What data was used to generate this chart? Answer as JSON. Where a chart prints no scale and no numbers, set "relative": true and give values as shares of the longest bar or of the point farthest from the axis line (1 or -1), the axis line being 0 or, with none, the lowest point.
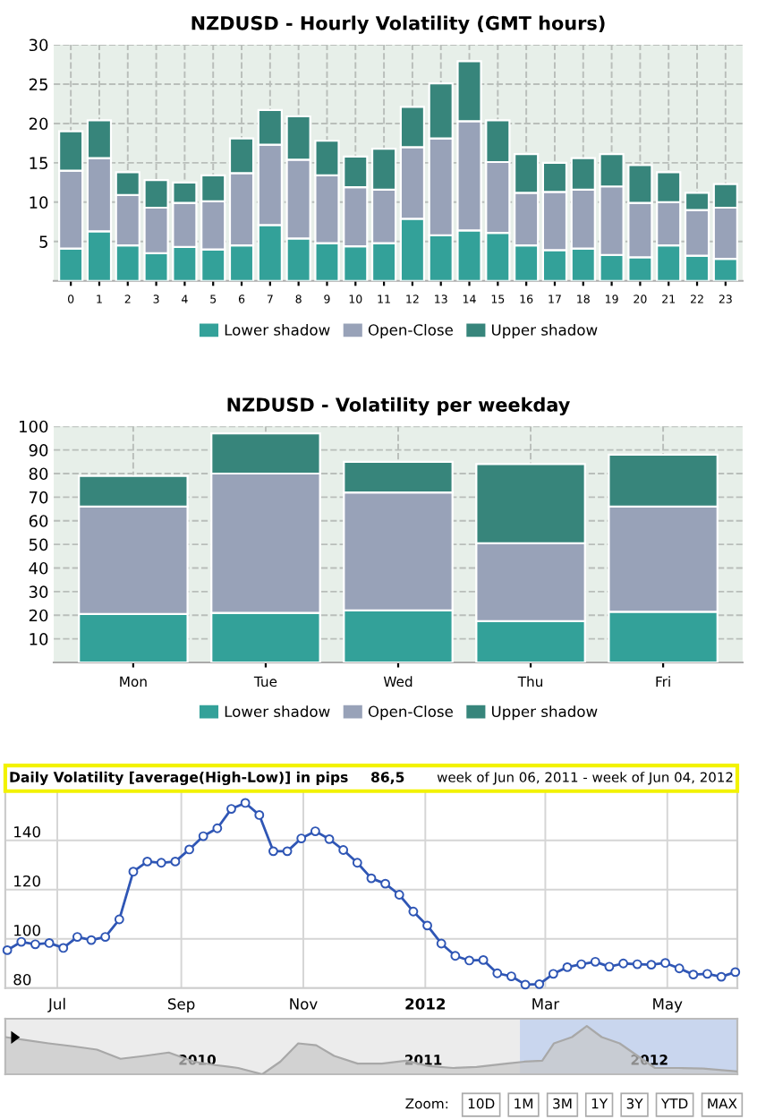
{
  "chart_data": [
    {
      "type": "bar",
      "title": "NZDUSD - Hourly Volatility (GMT hours)",
      "stacked": true,
      "legend": "bottom",
      "grid": true,
      "categories": [
        "0",
        "1",
        "2",
        "3",
        "4",
        "5",
        "6",
        "7",
        "8",
        "9",
        "10",
        "11",
        "12",
        "13",
        "14",
        "15",
        "16",
        "17",
        "18",
        "19",
        "20",
        "21",
        "22",
        "23"
      ],
      "series": [
        {
          "name": "Lower shadow",
          "color": "#33a199",
          "values": [
            4.1,
            6.3,
            4.5,
            3.5,
            4.3,
            4.0,
            4.5,
            7.1,
            5.4,
            4.8,
            4.4,
            4.8,
            7.9,
            5.8,
            6.4,
            6.1,
            4.5,
            3.9,
            4.1,
            3.3,
            3.0,
            4.5,
            3.2,
            2.8
          ]
        },
        {
          "name": "Open-Close",
          "color": "#98a2b8",
          "values": [
            9.9,
            9.3,
            6.4,
            5.8,
            5.6,
            6.1,
            9.2,
            10.2,
            10.0,
            8.6,
            7.5,
            6.8,
            9.1,
            12.3,
            13.9,
            9.0,
            6.7,
            7.4,
            7.5,
            8.7,
            6.9,
            5.5,
            5.8,
            6.5
          ]
        },
        {
          "name": "Upper shadow",
          "color": "#37857b",
          "values": [
            5.0,
            4.8,
            2.9,
            3.5,
            2.6,
            3.3,
            4.4,
            4.4,
            5.5,
            4.4,
            3.9,
            5.2,
            5.1,
            7.0,
            7.6,
            5.3,
            4.9,
            3.7,
            4.0,
            4.1,
            4.8,
            3.8,
            2.2,
            3.0
          ]
        }
      ],
      "ylim": [
        0,
        30
      ],
      "yticks": [
        5,
        10,
        15,
        20,
        25,
        30
      ]
    },
    {
      "type": "bar",
      "title": "NZDUSD - Volatility per weekday",
      "stacked": true,
      "legend": "bottom",
      "grid": true,
      "categories": [
        "Mon",
        "Tue",
        "Wed",
        "Thu",
        "Fri"
      ],
      "series": [
        {
          "name": "Lower shadow",
          "color": "#33a199",
          "values": [
            20.5,
            21,
            22,
            17.5,
            21.5
          ]
        },
        {
          "name": "Open-Close",
          "color": "#98a2b8",
          "values": [
            45.5,
            59,
            50,
            33,
            44.5
          ]
        },
        {
          "name": "Upper shadow",
          "color": "#37857b",
          "values": [
            13,
            17,
            13,
            33.5,
            22
          ]
        }
      ],
      "ylim": [
        0,
        100
      ],
      "yticks": [
        10,
        20,
        30,
        40,
        50,
        60,
        70,
        80,
        90,
        100
      ]
    },
    {
      "type": "line",
      "title": "Daily Volatility [average(High-Low)] in pips",
      "subtitle": "week of Jun 06, 2011 - week of Jun 04, 2012",
      "annotations": [
        "86,5"
      ],
      "grid": true,
      "marker": "circle",
      "x": [
        "2011-06-06",
        "2011-06-13",
        "2011-06-20",
        "2011-06-27",
        "2011-07-04",
        "2011-07-11",
        "2011-07-18",
        "2011-07-25",
        "2011-08-01",
        "2011-08-08",
        "2011-08-15",
        "2011-08-22",
        "2011-08-29",
        "2011-09-05",
        "2011-09-12",
        "2011-09-19",
        "2011-09-26",
        "2011-10-03",
        "2011-10-10",
        "2011-10-17",
        "2011-10-24",
        "2011-10-31",
        "2011-11-07",
        "2011-11-14",
        "2011-11-21",
        "2011-11-28",
        "2011-12-05",
        "2011-12-12",
        "2011-12-19",
        "2011-12-26",
        "2012-01-02",
        "2012-01-09",
        "2012-01-16",
        "2012-01-23",
        "2012-01-30",
        "2012-02-06",
        "2012-02-13",
        "2012-02-20",
        "2012-02-27",
        "2012-03-05",
        "2012-03-12",
        "2012-03-19",
        "2012-03-26",
        "2012-04-02",
        "2012-04-09",
        "2012-04-16",
        "2012-04-23",
        "2012-04-30",
        "2012-05-07",
        "2012-05-14",
        "2012-05-21",
        "2012-05-28",
        "2012-06-04"
      ],
      "series": [
        {
          "color": "#2f56b5",
          "values": [
            95.4,
            98.8,
            97.8,
            98.3,
            96.3,
            100.8,
            99.5,
            100.8,
            107.9,
            127.3,
            131.4,
            130.9,
            131.4,
            136.3,
            141.7,
            144.9,
            152.8,
            155.2,
            150.3,
            135.6,
            135.6,
            140.8,
            143.7,
            140.5,
            136.1,
            130.9,
            124.6,
            122.4,
            117.9,
            111.1,
            105.4,
            98.1,
            93.1,
            91.2,
            91.4,
            86.0,
            84.8,
            81.4,
            81.6,
            85.8,
            88.5,
            89.7,
            90.7,
            88.7,
            90.0,
            89.7,
            89.5,
            90.2,
            88.0,
            85.5,
            85.8,
            84.6,
            86.5
          ]
        }
      ],
      "xlim": [
        "2011-06-05",
        "2012-06-05"
      ],
      "xticks": [
        {
          "value": "2011-07-01",
          "label": "Jul"
        },
        {
          "value": "2011-09-01",
          "label": "Sep"
        },
        {
          "value": "2011-11-01",
          "label": "Nov"
        },
        {
          "value": "2012-01-01",
          "label": "2012"
        },
        {
          "value": "2012-03-01",
          "label": "Mar"
        },
        {
          "value": "2012-05-01",
          "label": "May"
        }
      ],
      "ylim": [
        80,
        160
      ],
      "yticks": [
        80,
        100,
        120,
        140
      ]
    },
    {
      "type": "area",
      "relative": true,
      "tick_labels": "x",
      "annotations": [
        "Zoom:",
        "10D",
        "1M",
        "3M",
        "1Y",
        "3Y",
        "YTD",
        "MAX"
      ],
      "x": [
        "2009-02-25",
        "2009-03-28",
        "2009-05-06",
        "2009-06-14",
        "2009-07-23",
        "2009-08-30",
        "2009-10-08",
        "2009-11-16",
        "2009-12-27",
        "2010-01-30",
        "2010-03-08",
        "2010-04-16",
        "2010-05-15",
        "2010-06-13",
        "2010-07-12",
        "2010-08-10",
        "2010-09-17",
        "2010-10-26",
        "2010-12-04",
        "2011-01-10",
        "2011-02-18",
        "2011-03-28",
        "2011-05-15",
        "2011-06-13",
        "2011-07-12",
        "2011-07-31",
        "2011-08-29",
        "2011-09-22",
        "2011-10-16",
        "2011-11-14",
        "2011-12-13",
        "2012-01-10",
        "2012-02-18",
        "2012-03-28",
        "2012-05-22"
      ],
      "series": [
        {
          "color": "#c8c8c8",
          "values": [
            0.77,
            0.71,
            0.64,
            0.58,
            0.51,
            0.32,
            0.38,
            0.45,
            0.26,
            0.19,
            0.13,
            0,
            0.26,
            0.64,
            0.6,
            0.38,
            0.22,
            0.22,
            0.28,
            0.17,
            0.13,
            0.15,
            0.22,
            0.26,
            0.28,
            0.64,
            0.77,
            1,
            0.77,
            0.64,
            0.38,
            0.13,
            0.13,
            0.12,
            0.06
          ]
        }
      ],
      "bands": [
        {
          "axis": "x",
          "from": "2011-06-06",
          "to": "2012-06-04",
          "color": "#c9d6ee"
        }
      ],
      "xlim": [
        "2009-02-25",
        "2012-05-22"
      ],
      "xticks": [
        {
          "value": "2010-01-01",
          "label": "2010"
        },
        {
          "value": "2011-01-01",
          "label": "2011"
        },
        {
          "value": "2012-01-01",
          "label": "2012"
        }
      ]
    }
  ]
}
